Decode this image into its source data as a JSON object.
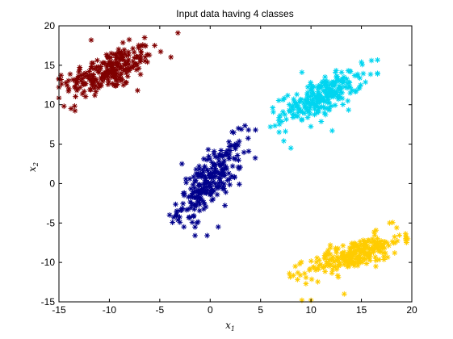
{
  "chart_data": {
    "type": "scatter",
    "title": "Input data having 4 classes",
    "xlabel": "x",
    "xlabel_subscript": "1",
    "ylabel": "x",
    "ylabel_subscript": "2",
    "xlim": [
      -15,
      20
    ],
    "ylim": [
      -15,
      20
    ],
    "xticks": [
      "-15",
      "-10",
      "-5",
      "0",
      "5",
      "10",
      "15",
      "20"
    ],
    "yticks": [
      "-15",
      "-10",
      "-5",
      "0",
      "5",
      "10",
      "15",
      "20"
    ],
    "grid": false,
    "legend": "none",
    "marker": "asterisk",
    "series": [
      {
        "color": "#800000",
        "center": [
          -10,
          14.3
        ],
        "spread": [
          2.2,
          1.6
        ],
        "correlation": 0.6,
        "count": 250,
        "points": [
          [
            -14.3,
            12.8
          ],
          [
            -14.5,
            9.8
          ],
          [
            -13.8,
            9.5
          ],
          [
            -14.8,
            13.2
          ],
          [
            -6.5,
            18.5
          ],
          [
            -3.2,
            19.1
          ],
          [
            -5.5,
            17.5
          ],
          [
            -7.2,
            11.8
          ],
          [
            -11.8,
            18.2
          ]
        ]
      },
      {
        "color": "#00008B",
        "center": [
          0,
          0.3
        ],
        "spread": [
          1.6,
          2.4
        ],
        "correlation": 0.72,
        "count": 250,
        "points": [
          [
            -1.5,
            -6.6
          ],
          [
            -0.3,
            -6.6
          ],
          [
            3.8,
            6.8
          ],
          [
            4.5,
            6.8
          ],
          [
            2.8,
            7.0
          ],
          [
            -3.2,
            -4.6
          ],
          [
            0.8,
            -5.5
          ],
          [
            -2.8,
            2.5
          ]
        ]
      },
      {
        "color": "#00D5F0",
        "center": [
          11,
          11.0
        ],
        "spread": [
          2.0,
          1.6
        ],
        "correlation": 0.7,
        "count": 250,
        "points": [
          [
            8.0,
            4.5
          ],
          [
            7.3,
            5.4
          ],
          [
            16.0,
            15.6
          ],
          [
            15.0,
            15.4
          ],
          [
            6.8,
            8.0
          ],
          [
            9.1,
            14.1
          ],
          [
            12.1,
            6.7
          ]
        ]
      },
      {
        "color": "#FFCC00",
        "center": [
          14.3,
          -9.0
        ],
        "spread": [
          2.3,
          1.3
        ],
        "correlation": 0.72,
        "count": 250,
        "points": [
          [
            9.1,
            -14.8
          ],
          [
            10.0,
            -14.8
          ],
          [
            17.8,
            -5.0
          ],
          [
            18.5,
            -5.6
          ],
          [
            8.7,
            -11.3
          ],
          [
            13.3,
            -14.0
          ],
          [
            18.3,
            -8.8
          ]
        ]
      }
    ]
  }
}
